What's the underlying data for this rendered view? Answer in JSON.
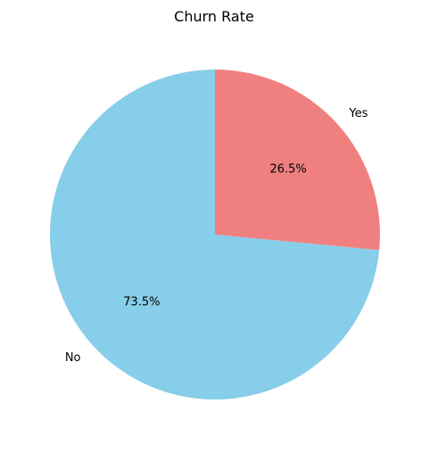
{
  "chart_data": {
    "type": "pie",
    "title": "Churn Rate",
    "labels": [
      "No",
      "Yes"
    ],
    "values": [
      73.5,
      26.5
    ],
    "percent_labels": [
      "73.5%",
      "26.5%"
    ],
    "colors": [
      "#87ceeb",
      "#f08080"
    ],
    "start_angle_deg": 90,
    "direction": "counterclockwise"
  }
}
